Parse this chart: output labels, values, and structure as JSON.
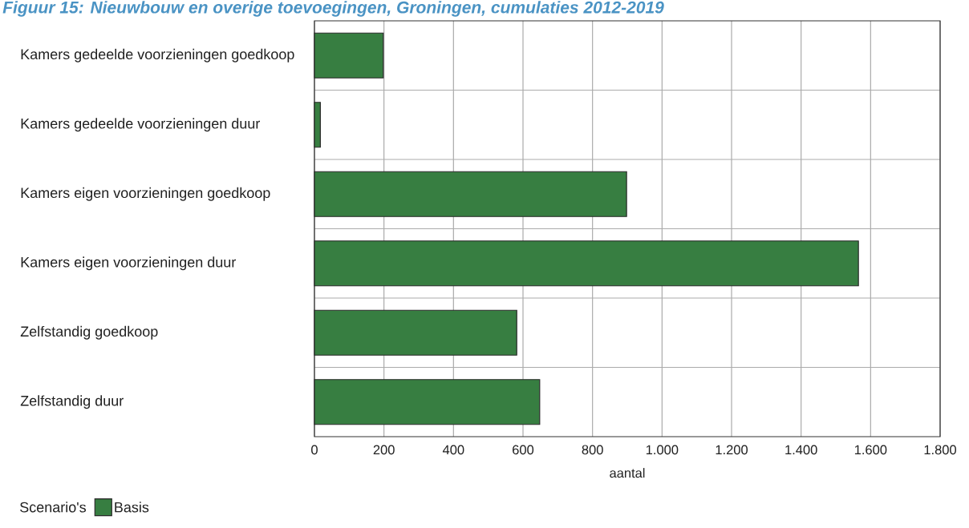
{
  "chart_data": {
    "type": "bar",
    "orientation": "horizontal",
    "title": "Figuur 15: Nieuwbouw en overige toevoegingen, Groningen, cumulaties 2012-2019",
    "categories": [
      "Kamers gedeelde voorzieningen goedkoop",
      "Kamers gedeelde voorzieningen duur",
      "Kamers eigen voorzieningen goedkoop",
      "Kamers eigen voorzieningen duur",
      "Zelfstandig goedkoop",
      "Zelfstandig duur"
    ],
    "series": [
      {
        "name": "Basis",
        "color": "#377e41",
        "values": [
          198,
          17,
          898,
          1565,
          582,
          648
        ]
      }
    ],
    "xlabel": "aantal",
    "xlim": [
      0,
      1800
    ],
    "xticks": [
      0,
      200,
      400,
      600,
      800,
      {
        "value": 1000,
        "label": "1.000"
      },
      {
        "value": 1200,
        "label": "1.200"
      },
      {
        "value": 1400,
        "label": "1.400"
      },
      {
        "value": 1600,
        "label": "1.600"
      },
      {
        "value": 1800,
        "label": "1.800"
      }
    ],
    "grid": true,
    "legend": "bottom left",
    "legend_title": "Scenario's"
  }
}
